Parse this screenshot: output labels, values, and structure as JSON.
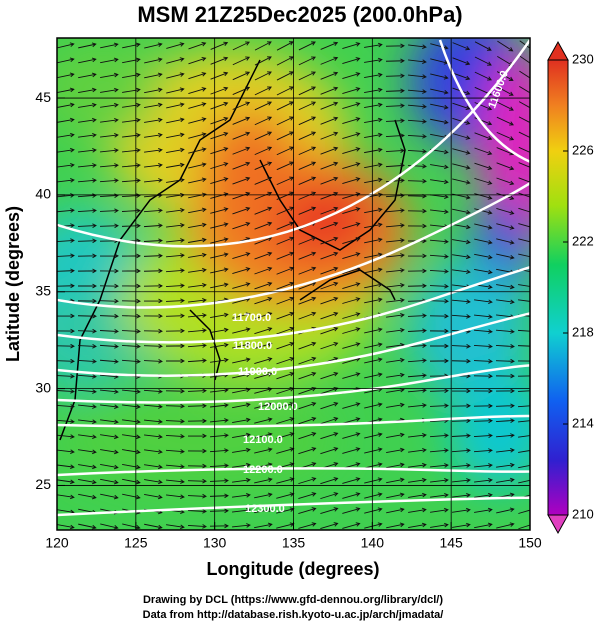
{
  "chart_data": {
    "type": "map",
    "title": "MSM 21Z25Dec2025 (200.0hPa)",
    "xlabel": "Longitude (degrees)",
    "ylabel": "Latitude  (degrees)",
    "xlim": [
      120,
      150
    ],
    "xticks": [
      120,
      125,
      130,
      135,
      140,
      145,
      150
    ],
    "ylim": [
      22.7,
      48.1
    ],
    "yticks": [
      25,
      30,
      35,
      40,
      45
    ],
    "grid": true,
    "colorbar": {
      "lim": [
        210,
        230
      ],
      "ticks": [
        210,
        214,
        218,
        222,
        226,
        230
      ]
    },
    "contour_labels": [
      {
        "value": 11600,
        "label": "11600.0"
      },
      {
        "value": 11700,
        "label": "11700.0"
      },
      {
        "value": 11800,
        "label": "11800.0"
      },
      {
        "value": 11900,
        "label": "11900.0"
      },
      {
        "value": 12000,
        "label": "12000.0"
      },
      {
        "value": 12100,
        "label": "12100.0"
      },
      {
        "value": 12200,
        "label": "12200.0"
      },
      {
        "value": 12300,
        "label": "12300.0"
      }
    ],
    "credits": [
      "Drawing by DCL (https://www.gfd-dennou.org/library/dcl/)",
      "Data from http://database.rish.kyoto-u.ac.jp/arch/jmadata/"
    ]
  }
}
